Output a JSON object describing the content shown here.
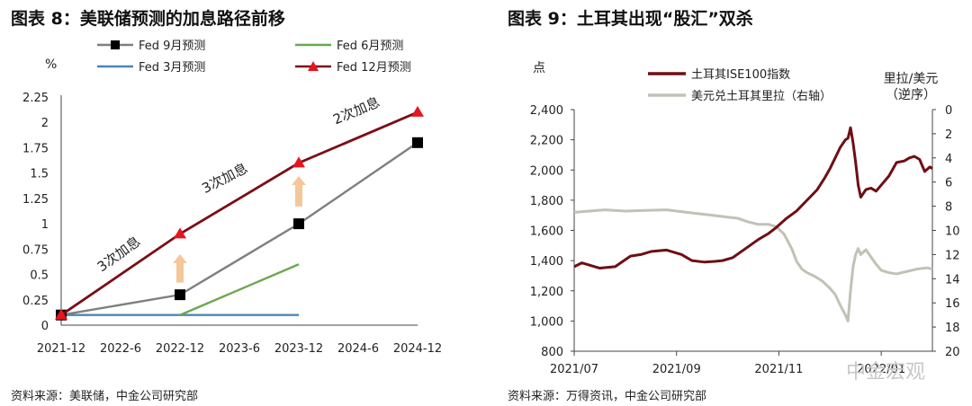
{
  "left": {
    "title": "图表 8：美联储预测的加息路径前移",
    "source": "资料来源：美联储，中金公司研究部"
  },
  "right": {
    "title": "图表 9：土耳其出现“股汇”双杀",
    "source": "资料来源：万得资讯，中金公司研究部",
    "watermark": "中金宏观"
  },
  "colors": {
    "fed_sep": "#7f7f7f",
    "fed_jun": "#6aa84f",
    "fed_mar": "#4a86b8",
    "fed_dec": "#7b0d16",
    "lira": "#bfc3b5",
    "ise": "#6e0f14",
    "arrow": "#f4c79b",
    "axis": "#444444"
  },
  "chart_data": [
    {
      "type": "line",
      "title": "图表 8：美联储预测的加息路径前移",
      "ylabel": "%",
      "categories": [
        "2021-12",
        "2022-6",
        "2022-12",
        "2023-6",
        "2023-12",
        "2024-6",
        "2024-12"
      ],
      "ylim": [
        0,
        2.25
      ],
      "yticks": [
        "0",
        "0.25",
        "0.5",
        "0.75",
        "1",
        "1.25",
        "1.5",
        "1.75",
        "2",
        "2.25"
      ],
      "series": [
        {
          "name": "Fed 9月预测",
          "x": [
            "2021-12",
            "2022-12",
            "2023-12",
            "2024-12"
          ],
          "values": [
            0.1,
            0.3,
            1.0,
            1.8
          ],
          "marker": "square"
        },
        {
          "name": "Fed 6月预测",
          "x": [
            "2022-12",
            "2023-12"
          ],
          "values": [
            0.1,
            0.6
          ],
          "marker": "none"
        },
        {
          "name": "Fed 3月预测",
          "x": [
            "2021-12",
            "2023-12"
          ],
          "values": [
            0.1,
            0.1
          ],
          "marker": "none"
        },
        {
          "name": "Fed 12月预测",
          "x": [
            "2021-12",
            "2022-12",
            "2023-12",
            "2024-12"
          ],
          "values": [
            0.1,
            0.9,
            1.6,
            2.1
          ],
          "marker": "triangle"
        }
      ],
      "annotations": [
        "3次加息",
        "3次加息",
        "2次加息"
      ]
    },
    {
      "type": "line",
      "title": "图表 9：土耳其出现“股汇”双杀",
      "ylabel": "点",
      "y2label_line1": "里拉/美元",
      "y2label_line2": "（逆序）",
      "x_labels": [
        "2021/07",
        "2021/09",
        "2021/11",
        "2022/01"
      ],
      "xlim_months": [
        0,
        7
      ],
      "ylim": [
        800,
        2400
      ],
      "yticks": [
        "800",
        "1,000",
        "1,200",
        "1,400",
        "1,600",
        "1,800",
        "2,000",
        "2,200",
        "2,400"
      ],
      "y2lim_inverted": [
        0,
        20
      ],
      "y2ticks": [
        "0",
        "2",
        "4",
        "6",
        "8",
        "10",
        "12",
        "14",
        "16",
        "18",
        "20"
      ],
      "series": [
        {
          "name": "土耳其ISE100指数",
          "axis": "left",
          "x": [
            0,
            0.15,
            0.3,
            0.5,
            0.8,
            1.1,
            1.3,
            1.5,
            1.8,
            2.1,
            2.3,
            2.55,
            2.75,
            2.9,
            3.1,
            3.35,
            3.6,
            3.8,
            3.95,
            4.15,
            4.35,
            4.55,
            4.75,
            4.9,
            5.0,
            5.1,
            5.2,
            5.3,
            5.35,
            5.4,
            5.45,
            5.5,
            5.55,
            5.6,
            5.7,
            5.8,
            5.9,
            6.0,
            6.15,
            6.3,
            6.45,
            6.55,
            6.65,
            6.75,
            6.85,
            6.95,
            7.0
          ],
          "values": [
            1360,
            1385,
            1370,
            1350,
            1360,
            1430,
            1440,
            1460,
            1470,
            1440,
            1400,
            1390,
            1395,
            1400,
            1420,
            1480,
            1540,
            1580,
            1620,
            1680,
            1730,
            1800,
            1870,
            1950,
            2010,
            2080,
            2150,
            2200,
            2210,
            2280,
            2180,
            2050,
            1900,
            1820,
            1870,
            1880,
            1860,
            1900,
            1960,
            2050,
            2060,
            2080,
            2090,
            2070,
            1990,
            2020,
            2010
          ]
        },
        {
          "name": "美元兑土耳其里拉（右轴）",
          "axis": "right",
          "x": [
            0,
            0.3,
            0.6,
            1.0,
            1.4,
            1.8,
            2.2,
            2.6,
            3.0,
            3.2,
            3.4,
            3.6,
            3.8,
            3.95,
            4.1,
            4.25,
            4.35,
            4.45,
            4.55,
            4.7,
            4.85,
            5.0,
            5.1,
            5.2,
            5.3,
            5.35,
            5.4,
            5.45,
            5.5,
            5.55,
            5.6,
            5.7,
            5.8,
            5.9,
            6.0,
            6.15,
            6.3,
            6.5,
            6.7,
            6.9,
            7.0
          ],
          "values": [
            8.5,
            8.4,
            8.3,
            8.4,
            8.35,
            8.3,
            8.5,
            8.7,
            8.9,
            9.0,
            9.3,
            9.5,
            9.5,
            9.7,
            10.3,
            11.5,
            12.6,
            13.2,
            13.5,
            13.8,
            14.2,
            14.8,
            15.3,
            16.2,
            17.0,
            17.5,
            15.0,
            13.0,
            12.0,
            11.5,
            12.0,
            11.6,
            12.2,
            12.8,
            13.3,
            13.5,
            13.6,
            13.4,
            13.2,
            13.1,
            13.2
          ]
        }
      ]
    }
  ]
}
